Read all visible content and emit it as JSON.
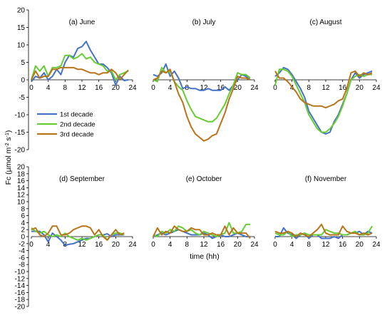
{
  "chart_data": {
    "type": "line",
    "xlabel": "time (hh)",
    "ylabel": "Fc (µmol m⁻² s⁻¹)",
    "ylabel_main": "Fc (µmol m",
    "ylabel_sup1": "-2",
    "ylabel_mid": " s",
    "ylabel_sup2": "-1",
    "ylabel_end": ")",
    "ylim": [
      -20,
      20
    ],
    "yticks": [
      "20",
      "15",
      "10",
      "5",
      "0",
      "-5",
      "-10",
      "-15",
      "-20"
    ],
    "ylim_bottom": [
      -20,
      20
    ],
    "yticks_bottom": [
      "20",
      "18",
      "16",
      "14",
      "12",
      "10",
      "8",
      "6",
      "4",
      "2",
      "0",
      "-2",
      "-4",
      "-6",
      "-8",
      "-10",
      "-12",
      "-14",
      "-16",
      "-18",
      "-20"
    ],
    "xticks": [
      "0",
      "4",
      "8",
      "12",
      "16",
      "20",
      "24"
    ],
    "series_names": [
      "1st decade",
      "2nd decade",
      "3rd decade"
    ],
    "colors": [
      "#4472c4",
      "#66cc33",
      "#b8741a"
    ],
    "legend_position": "left of panel (b)",
    "panels": [
      {
        "title": "(a) June",
        "series": [
          {
            "name": "1st decade",
            "values": [
              -0.5,
              1,
              0.5,
              2,
              0,
              1,
              3,
              1.5,
              5,
              7,
              6.5,
              9,
              9.5,
              11,
              8.5,
              6.5,
              4.5,
              4.5,
              3.5,
              2,
              -1.5,
              1,
              -0.2,
              0
            ]
          },
          {
            "name": "2nd decade",
            "values": [
              0,
              4,
              2.5,
              4,
              1,
              3.5,
              3.5,
              4,
              7,
              7,
              6,
              6.5,
              7.5,
              6,
              6.5,
              5,
              4.5,
              4,
              2.5,
              2.5,
              0,
              1.5,
              2,
              2.5
            ]
          },
          {
            "name": "3rd decade",
            "values": [
              0,
              2.5,
              0.5,
              1,
              1,
              3,
              3,
              3.5,
              3.5,
              3.5,
              3.5,
              3,
              3,
              2.5,
              2,
              2,
              1.5,
              2,
              2,
              3,
              2,
              0,
              1.5,
              2.8
            ]
          }
        ]
      },
      {
        "title": "(b) July",
        "series": [
          {
            "name": "1st decade",
            "values": [
              1.5,
              1,
              2,
              4.5,
              1,
              2.5,
              0.5,
              -2.5,
              -2,
              -2.5,
              -2.5,
              -3,
              -3,
              -2.5,
              -3,
              -3,
              -3,
              -2,
              -3,
              -1.5,
              0,
              1.5,
              1,
              0
            ]
          },
          {
            "name": "2nd decade",
            "values": [
              0,
              -0.5,
              3.5,
              2,
              2.5,
              -0.5,
              -2,
              -3,
              -6,
              -8.5,
              -10.5,
              -11,
              -11.5,
              -12,
              -12,
              -11,
              -9,
              -7,
              -4,
              -1.5,
              2,
              1.5,
              1.5,
              0.5
            ]
          },
          {
            "name": "3rd decade",
            "values": [
              0,
              0.5,
              2.5,
              2,
              3,
              -0.5,
              -4,
              -6.5,
              -10.5,
              -13.5,
              -15.5,
              -16.5,
              -17.5,
              -17,
              -16,
              -15.5,
              -12.5,
              -9.5,
              -5.5,
              -2.5,
              1,
              0.5,
              0.5,
              0
            ]
          }
        ]
      },
      {
        "title": "(c) August",
        "series": [
          {
            "name": "1st decade",
            "values": [
              1,
              2,
              3.5,
              3,
              1.5,
              -0.5,
              -2.5,
              -5,
              -9,
              -11,
              -13,
              -15,
              -15.5,
              -15,
              -12,
              -10,
              -7,
              -4,
              0,
              2,
              0.5,
              1.5,
              2,
              2.5
            ]
          },
          {
            "name": "2nd decade",
            "values": [
              -1.5,
              3,
              3,
              2.5,
              1,
              -1.5,
              -4,
              -6.5,
              -10,
              -12,
              -14,
              -15,
              -15,
              -14,
              -12.5,
              -10.5,
              -7.5,
              -4,
              0,
              1,
              1.5,
              1,
              1.5,
              1.5
            ]
          },
          {
            "name": "3rd decade",
            "values": [
              2.5,
              0.5,
              0.5,
              -0.5,
              -2,
              -3.5,
              -5.5,
              -6.5,
              -7,
              -7.5,
              -7.5,
              -7.5,
              -8,
              -7.5,
              -7,
              -6,
              -5.5,
              -2.5,
              2,
              2.5,
              1,
              2,
              1.5,
              2
            ]
          }
        ]
      },
      {
        "title": "(d) September",
        "series": [
          {
            "name": "1st decade",
            "values": [
              1.5,
              1.5,
              1.5,
              0.5,
              -1.5,
              1,
              0,
              -1,
              -2.5,
              -2.2,
              -2,
              -1.5,
              -1,
              -0.5,
              -0.5,
              0,
              0.5,
              0.5,
              0.8,
              0,
              0.5,
              0.5,
              0.5
            ]
          },
          {
            "name": "2nd decade",
            "values": [
              2.5,
              1.5,
              1,
              1.5,
              0.5,
              0,
              0.5,
              0,
              1,
              0,
              -0.5,
              -1,
              -0.5,
              -1,
              -0.5,
              0,
              0.5,
              0.5,
              -1,
              0.5,
              1,
              1,
              0.5
            ]
          },
          {
            "name": "3rd decade",
            "values": [
              2,
              2.5,
              0.5,
              0,
              1,
              3,
              3,
              0.5,
              0.5,
              1,
              2,
              2.5,
              3,
              3,
              2.5,
              0.5,
              2,
              0,
              -1,
              0.5,
              2,
              0.5,
              1
            ]
          }
        ]
      },
      {
        "title": "(e) October",
        "series": [
          {
            "name": "1st decade",
            "values": [
              0,
              0.5,
              1,
              0.5,
              1,
              1.5,
              2,
              1.5,
              1,
              0.5,
              0.5,
              0.5,
              1,
              0.5,
              -0.5,
              0,
              0.5,
              0,
              0,
              0.5,
              1,
              0.5,
              0,
              0
            ]
          },
          {
            "name": "2nd decade",
            "values": [
              0.5,
              0,
              1.5,
              1,
              2,
              1.5,
              3,
              2.5,
              1.5,
              2,
              1,
              0.5,
              1.5,
              1,
              0.5,
              0,
              0.5,
              1,
              4,
              1,
              1,
              1.5,
              3.5,
              3.5
            ]
          },
          {
            "name": "3rd decade",
            "values": [
              0,
              2.5,
              0.5,
              1.5,
              1,
              3,
              2,
              1.5,
              1.5,
              2.5,
              2,
              2,
              0.5,
              0.5,
              1,
              0.5,
              0.5,
              3,
              0.5,
              2.5,
              1,
              1,
              1,
              -0.5
            ]
          }
        ]
      },
      {
        "title": "(f) November",
        "series": [
          {
            "name": "1st decade",
            "values": [
              0,
              0,
              2.5,
              1,
              0.5,
              -0.5,
              0.5,
              1,
              -0.5,
              0.5,
              0.5,
              -0.5,
              -0.5,
              -0.5,
              0,
              -0.5,
              0.5,
              0.5,
              1,
              1,
              1.5,
              0.5,
              1.5,
              1
            ]
          },
          {
            "name": "2nd decade",
            "values": [
              1,
              0.5,
              0.5,
              1.5,
              0,
              0.5,
              0.5,
              1,
              0.5,
              0.5,
              0.5,
              0.5,
              2,
              1.5,
              1,
              1,
              0.5,
              0.5,
              1,
              1.5,
              0.5,
              0.5,
              1,
              3
            ]
          },
          {
            "name": "3rd decade",
            "values": [
              1.5,
              1,
              1,
              1.5,
              1,
              0,
              1,
              0.5,
              0,
              1,
              2,
              3.5,
              1,
              0.5,
              0.5,
              0.5,
              3,
              1.5,
              1,
              1,
              0.5,
              1,
              0.5,
              1
            ]
          }
        ]
      }
    ]
  }
}
